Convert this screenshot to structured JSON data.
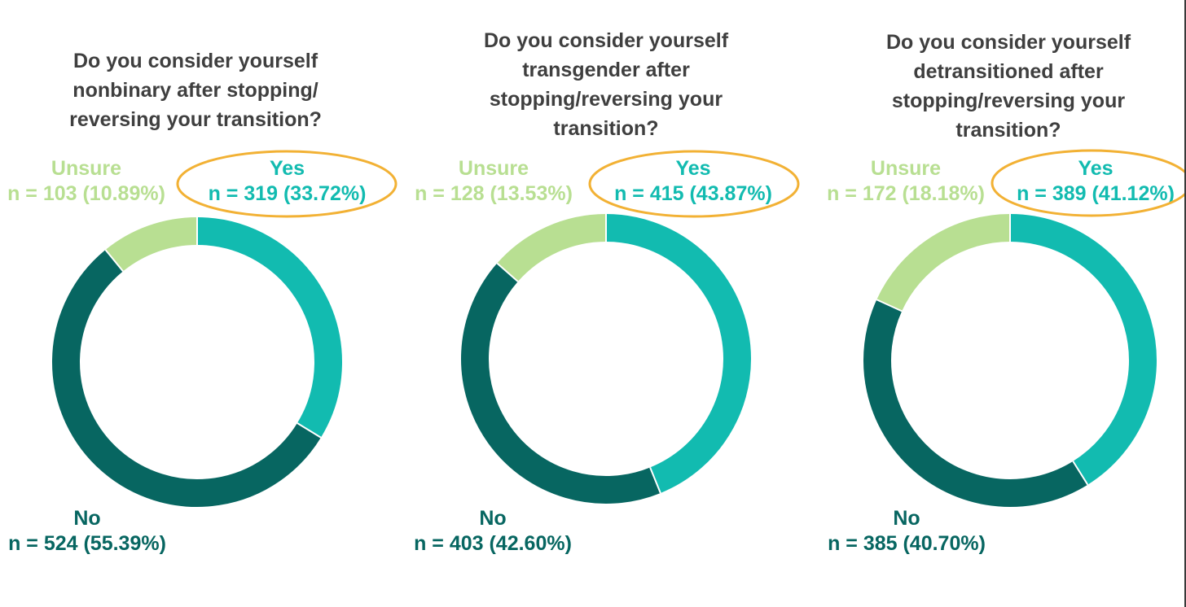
{
  "colors": {
    "yes": "#12bbb0",
    "no": "#076661",
    "unsure": "#b8df92",
    "title": "#3f3f3f",
    "highlight": "#f2b134"
  },
  "chart_data": [
    {
      "type": "pie",
      "title": "Do you consider yourself nonbinary after stopping/ reversing your transition?",
      "categories": [
        "Yes",
        "No",
        "Unsure"
      ],
      "values": [
        319,
        524,
        103
      ],
      "percent_labels": [
        "n = 319 (33.72%)",
        "n = 524 (55.39%)",
        "n = 103 (10.89%)"
      ]
    },
    {
      "type": "pie",
      "title": "Do you consider yourself transgender after stopping/reversing your transition?",
      "categories": [
        "Yes",
        "No",
        "Unsure"
      ],
      "values": [
        415,
        403,
        128
      ],
      "percent_labels": [
        "n = 415 (43.87%)",
        "n = 403 (42.60%)",
        "n = 128 (13.53%)"
      ]
    },
    {
      "type": "pie",
      "title": "Do you consider yourself detransitioned after stopping/reversing your transition?",
      "categories": [
        "Yes",
        "No",
        "Unsure"
      ],
      "values": [
        389,
        385,
        172
      ],
      "percent_labels": [
        "n = 389 (41.12%)",
        "n = 385 (40.70%)",
        "n = 172 (18.18%)"
      ]
    }
  ]
}
